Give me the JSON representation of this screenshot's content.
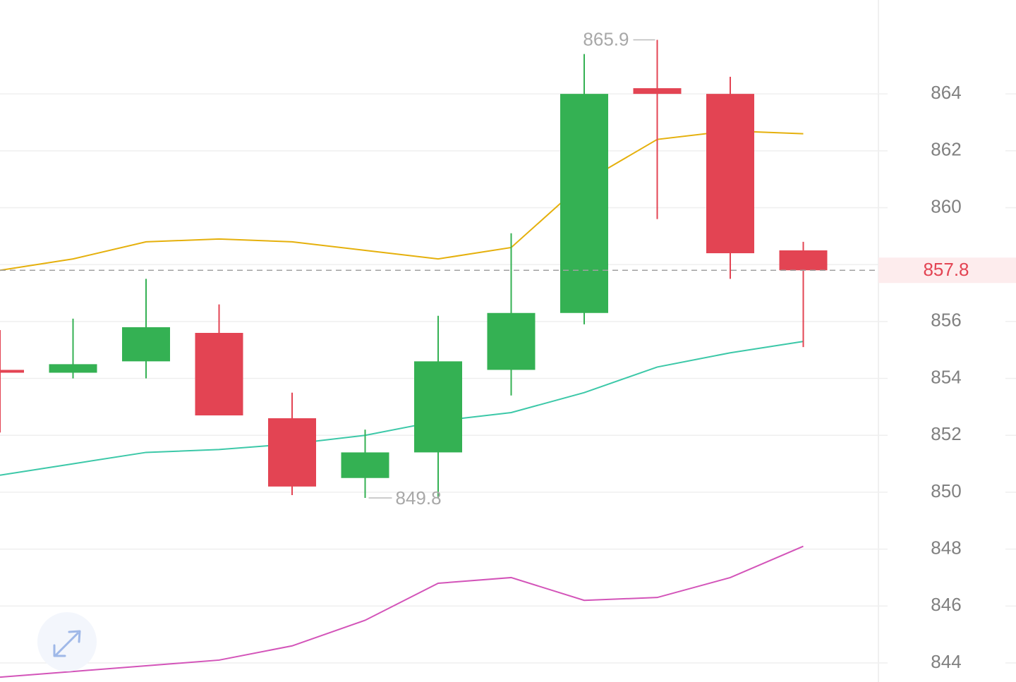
{
  "chart_data": {
    "type": "candlestick",
    "open": [
      854.3,
      854.2,
      854.6,
      855.6,
      852.6,
      850.5,
      851.4,
      854.3,
      856.3,
      864.2,
      864.0,
      858.5
    ],
    "high": [
      855.7,
      856.1,
      857.5,
      856.6,
      853.5,
      852.2,
      856.2,
      859.1,
      865.4,
      865.9,
      864.6,
      858.8
    ],
    "low": [
      852.1,
      854.0,
      854.0,
      852.7,
      849.9,
      849.8,
      849.8,
      853.4,
      855.9,
      859.6,
      857.5,
      855.1
    ],
    "close": [
      854.2,
      854.5,
      855.8,
      852.7,
      850.2,
      851.4,
      854.6,
      856.3,
      864.0,
      864.0,
      858.4,
      857.8
    ],
    "up_color": "#34b153",
    "down_color": "#e34453",
    "series": [
      {
        "color": "#e5b00c",
        "values": [
          857.8,
          858.2,
          858.8,
          858.9,
          858.8,
          858.5,
          858.2,
          858.6,
          860.9,
          862.4,
          862.7,
          862.6
        ]
      },
      {
        "color": "#3cc8a8",
        "values": [
          850.6,
          851.0,
          851.4,
          851.5,
          851.7,
          852.0,
          852.5,
          852.8,
          853.5,
          854.4,
          854.9,
          855.3
        ]
      },
      {
        "color": "#d354b9",
        "values": [
          843.5,
          843.7,
          843.9,
          844.1,
          844.6,
          845.5,
          846.8,
          847.0,
          846.2,
          846.3,
          847.0,
          848.1
        ]
      }
    ],
    "ylim": [
      843.33,
      867.3
    ],
    "yticks": [
      844,
      846,
      848,
      850,
      852,
      854,
      856,
      858,
      860,
      862,
      864
    ],
    "hidden_tick_labels": [
      858
    ],
    "grid": true,
    "high_marker": 865.9,
    "low_marker": 849.8,
    "last_price": 857.8
  }
}
